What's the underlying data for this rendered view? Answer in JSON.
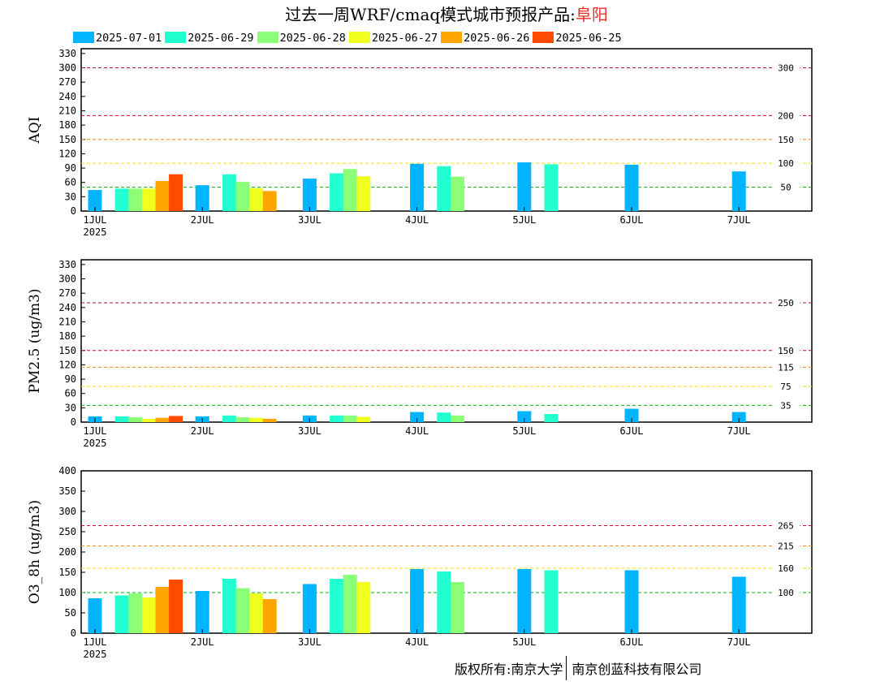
{
  "header": {
    "title_prefix": "过去一周WRF/cmaq模式城市预报产品:",
    "city": "阜阳"
  },
  "legend": [
    {
      "label": "2025-07-01",
      "color": "#00b4ff"
    },
    {
      "label": "2025-06-29",
      "color": "#22ffd0"
    },
    {
      "label": "2025-06-28",
      "color": "#8cff78"
    },
    {
      "label": "2025-06-27",
      "color": "#f0ff1e"
    },
    {
      "label": "2025-06-26",
      "color": "#ffa500"
    },
    {
      "label": "2025-06-25",
      "color": "#ff4b00"
    }
  ],
  "footer": {
    "left": "版权所有:南京大学",
    "right": "南京创蓝科技有限公司"
  },
  "chart_data": [
    {
      "type": "bar",
      "ylabel": "AQI",
      "ylim": [
        0,
        340
      ],
      "yticks": [
        0,
        30,
        60,
        90,
        120,
        150,
        180,
        210,
        240,
        270,
        300,
        330
      ],
      "xticks": [
        "1JUL",
        "2JUL",
        "3JUL",
        "4JUL",
        "5JUL",
        "6JUL",
        "7JUL"
      ],
      "xtick_year": "2025",
      "thresholds": [
        {
          "value": 300,
          "label": "300",
          "color": "#b0103a"
        },
        {
          "value": 200,
          "label": "200",
          "color": "#e0002a"
        },
        {
          "value": 150,
          "label": "150",
          "color": "#ff8c00"
        },
        {
          "value": 100,
          "label": "100",
          "color": "#f0e000"
        },
        {
          "value": 50,
          "label": "50",
          "color": "#00b000"
        }
      ],
      "series": [
        {
          "name": "2025-07-01",
          "values": [
            44,
            54,
            68,
            99,
            102,
            97,
            83
          ]
        },
        {
          "name": "2025-06-29",
          "values": [
            47,
            77,
            79,
            94,
            98
          ]
        },
        {
          "name": "2025-06-28",
          "values": [
            47,
            61,
            88,
            72
          ]
        },
        {
          "name": "2025-06-27",
          "values": [
            47,
            48,
            73
          ]
        },
        {
          "name": "2025-06-26",
          "values": [
            63,
            42
          ]
        },
        {
          "name": "2025-06-25",
          "values": [
            77
          ]
        }
      ]
    },
    {
      "type": "bar",
      "ylabel": "PM2.5 (ug/m3)",
      "ylim": [
        0,
        340
      ],
      "yticks": [
        0,
        30,
        60,
        90,
        120,
        150,
        180,
        210,
        240,
        270,
        300,
        330
      ],
      "xticks": [
        "1JUL",
        "2JUL",
        "3JUL",
        "4JUL",
        "5JUL",
        "6JUL",
        "7JUL"
      ],
      "xtick_year": "2025",
      "thresholds": [
        {
          "value": 250,
          "label": "250",
          "color": "#b0103a"
        },
        {
          "value": 150,
          "label": "150",
          "color": "#e0002a"
        },
        {
          "value": 115,
          "label": "115",
          "color": "#ff8c00"
        },
        {
          "value": 75,
          "label": "75",
          "color": "#f0e000"
        },
        {
          "value": 35,
          "label": "35",
          "color": "#00b000"
        }
      ],
      "series": [
        {
          "name": "2025-07-01",
          "values": [
            12,
            12,
            14,
            21,
            23,
            28,
            21
          ]
        },
        {
          "name": "2025-06-29",
          "values": [
            12,
            14,
            14,
            20,
            17
          ]
        },
        {
          "name": "2025-06-28",
          "values": [
            10,
            10,
            14,
            14
          ]
        },
        {
          "name": "2025-06-27",
          "values": [
            7,
            9,
            11
          ]
        },
        {
          "name": "2025-06-26",
          "values": [
            9,
            7
          ]
        },
        {
          "name": "2025-06-25",
          "values": [
            13
          ]
        }
      ]
    },
    {
      "type": "bar",
      "ylabel": "O3_8h (ug/m3)",
      "ylim": [
        0,
        400
      ],
      "yticks": [
        0,
        50,
        100,
        150,
        200,
        250,
        300,
        350,
        400
      ],
      "xticks": [
        "1JUL",
        "2JUL",
        "3JUL",
        "4JUL",
        "5JUL",
        "6JUL",
        "7JUL"
      ],
      "xtick_year": "2025",
      "thresholds": [
        {
          "value": 265,
          "label": "265",
          "color": "#e0002a"
        },
        {
          "value": 215,
          "label": "215",
          "color": "#ff8c00"
        },
        {
          "value": 160,
          "label": "160",
          "color": "#f0e000"
        },
        {
          "value": 100,
          "label": "100",
          "color": "#00b000"
        }
      ],
      "series": [
        {
          "name": "2025-07-01",
          "values": [
            86,
            104,
            121,
            158,
            158,
            155,
            139
          ]
        },
        {
          "name": "2025-06-29",
          "values": [
            93,
            134,
            134,
            152,
            155
          ]
        },
        {
          "name": "2025-06-28",
          "values": [
            98,
            111,
            144,
            126
          ]
        },
        {
          "name": "2025-06-27",
          "values": [
            88,
            98,
            126
          ]
        },
        {
          "name": "2025-06-26",
          "values": [
            114,
            84
          ]
        },
        {
          "name": "2025-06-25",
          "values": [
            132
          ]
        }
      ]
    }
  ]
}
